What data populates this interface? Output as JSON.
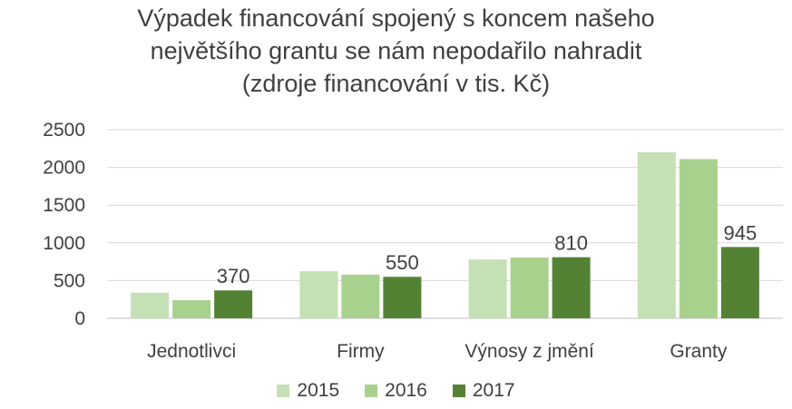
{
  "chart_data": {
    "type": "bar",
    "title_lines": [
      "Výpadek financování spojený s koncem našeho",
      "největšího grantu se nám nepodařilo nahradit",
      "(zdroje financování v tis. Kč)"
    ],
    "categories": [
      "Jednotlivci",
      "Firmy",
      "Výnosy z jmění",
      "Granty"
    ],
    "series": [
      {
        "name": "2015",
        "color": "#c5e0b4",
        "values": [
          340,
          625,
          780,
          2200
        ]
      },
      {
        "name": "2016",
        "color": "#a9d18e",
        "values": [
          240,
          580,
          805,
          2110
        ]
      },
      {
        "name": "2017",
        "color": "#548235",
        "values": [
          370,
          550,
          810,
          945
        ]
      }
    ],
    "data_labels_series": "2017",
    "yticks": [
      "0",
      "500",
      "1000",
      "1500",
      "2000",
      "2500"
    ],
    "ylim": [
      0,
      2500
    ],
    "grid": true,
    "legend_position": "bottom",
    "xlabel": "",
    "ylabel": ""
  }
}
